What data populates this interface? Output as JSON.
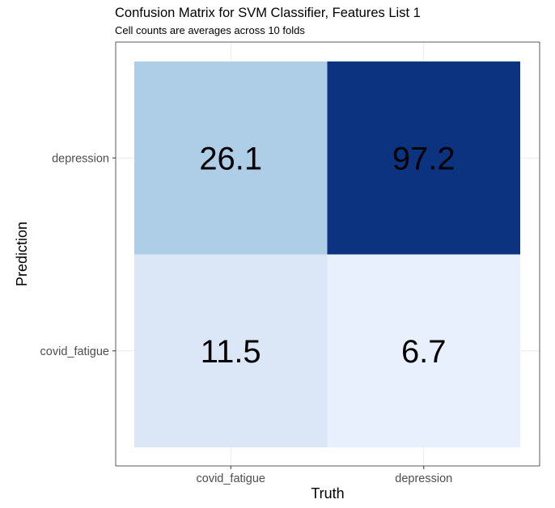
{
  "chart_data": {
    "type": "heatmap",
    "title": "Confusion Matrix for SVM Classifier, Features List 1",
    "subtitle": "Cell counts are averages across 10 folds",
    "xlabel": "Truth",
    "ylabel": "Prediction",
    "x_categories": [
      "covid_fatigue",
      "depression"
    ],
    "y_categories": [
      "covid_fatigue",
      "depression"
    ],
    "cells": [
      {
        "truth": "covid_fatigue",
        "prediction": "depression",
        "value": 26.1,
        "label": "26.1",
        "color": "#AECDE6"
      },
      {
        "truth": "depression",
        "prediction": "depression",
        "value": 97.2,
        "label": "97.2",
        "color": "#0B3380"
      },
      {
        "truth": "covid_fatigue",
        "prediction": "covid_fatigue",
        "value": 11.5,
        "label": "11.5",
        "color": "#DBE6F7"
      },
      {
        "truth": "depression",
        "prediction": "covid_fatigue",
        "value": 6.7,
        "label": "6.7",
        "color": "#E8EFFD"
      }
    ],
    "grid": true,
    "legend": "none"
  }
}
